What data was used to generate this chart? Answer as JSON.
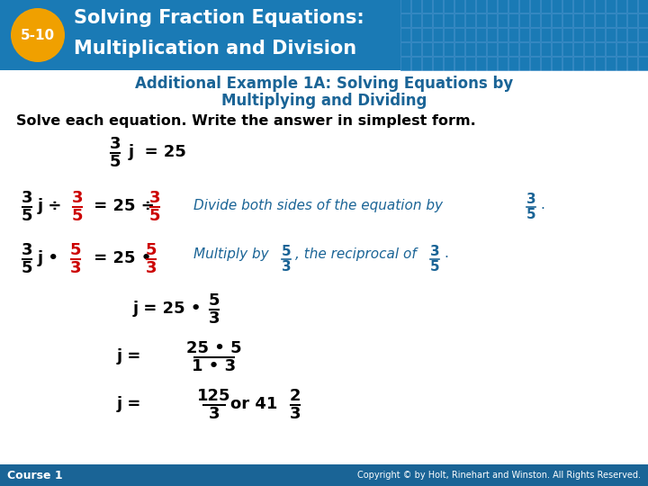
{
  "header_bg_color": "#1a7ab5",
  "header_text_color": "#ffffff",
  "badge_color": "#f0a000",
  "badge_text": "5-10",
  "header_line1": "Solving Fraction Equations:",
  "header_line2": "Multiplication and Division",
  "subtitle_color": "#1a6496",
  "subtitle_line1": "Additional Example 1A: Solving Equations by",
  "subtitle_line2": "Multiplying and Dividing",
  "body_bg_color": "#ffffff",
  "instruction_color": "#000000",
  "instruction_text": "Solve each equation. Write the answer in simplest form.",
  "eq_black": "#000000",
  "eq_red": "#cc0000",
  "eq_blue": "#1a6496",
  "footer_bg_color": "#1a6496",
  "footer_left": "Course 1",
  "footer_right": "Copyright © by Holt, Rinehart and Winston. All Rights Reserved.",
  "footer_text_color": "#ffffff",
  "grid_color": "#3a8ac4"
}
